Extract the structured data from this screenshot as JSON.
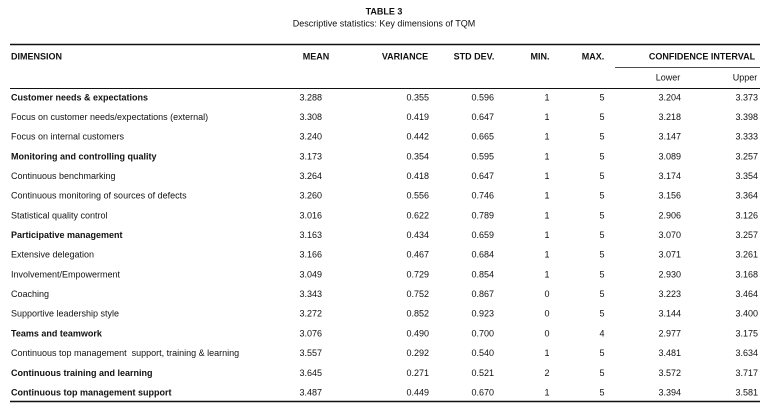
{
  "title": "TABLE 3",
  "subtitle": "Descriptive statistics: Key dimensions of TQM",
  "table": {
    "header": [
      "DIMENSION",
      "MEAN",
      "VARIANCE",
      "STD DEV.",
      "MIN.",
      "MAX.",
      "CONFIDENCE INTERVAL"
    ],
    "subheader": [
      "Lower",
      "Upper"
    ],
    "rows": [
      {
        "bold": true,
        "cells": [
          "Customer needs & expectations",
          "3.288",
          "0.355",
          "0.596",
          "1",
          "5",
          "3.204",
          "3.373"
        ]
      },
      {
        "bold": false,
        "cells": [
          "Focus on customer needs/expectations (external)",
          "3.308",
          "0.419",
          "0.647",
          "1",
          "5",
          "3.218",
          "3.398"
        ]
      },
      {
        "bold": false,
        "cells": [
          "Focus on internal customers",
          "3.240",
          "0.442",
          "0.665",
          "1",
          "5",
          "3.147",
          "3.333"
        ]
      },
      {
        "bold": true,
        "cells": [
          "Monitoring and controlling quality",
          "3.173",
          "0.354",
          "0.595",
          "1",
          "5",
          "3.089",
          "3.257"
        ]
      },
      {
        "bold": false,
        "cells": [
          "Continuous benchmarking",
          "3.264",
          "0.418",
          "0.647",
          "1",
          "5",
          "3.174",
          "3.354"
        ]
      },
      {
        "bold": false,
        "cells": [
          "Continuous monitoring of sources of defects",
          "3.260",
          "0.556",
          "0.746",
          "1",
          "5",
          "3.156",
          "3.364"
        ]
      },
      {
        "bold": false,
        "cells": [
          "Statistical quality control",
          "3.016",
          "0.622",
          "0.789",
          "1",
          "5",
          "2.906",
          "3.126"
        ]
      },
      {
        "bold": true,
        "cells": [
          "Participative management",
          "3.163",
          "0.434",
          "0.659",
          "1",
          "5",
          "3.070",
          "3.257"
        ]
      },
      {
        "bold": false,
        "cells": [
          "Extensive delegation",
          "3.166",
          "0.467",
          "0.684",
          "1",
          "5",
          "3.071",
          "3.261"
        ]
      },
      {
        "bold": false,
        "cells": [
          "Involvement/Empowerment",
          "3.049",
          "0.729",
          "0.854",
          "1",
          "5",
          "2.930",
          "3.168"
        ]
      },
      {
        "bold": false,
        "cells": [
          "Coaching",
          "3.343",
          "0.752",
          "0.867",
          "0",
          "5",
          "3.223",
          "3.464"
        ]
      },
      {
        "bold": false,
        "cells": [
          "Supportive leadership style",
          "3.272",
          "0.852",
          "0.923",
          "0",
          "5",
          "3.144",
          "3.400"
        ]
      },
      {
        "bold": true,
        "cells": [
          "Teams and teamwork",
          "3.076",
          "0.490",
          "0.700",
          "0",
          "4",
          "2.977",
          "3.175"
        ]
      },
      {
        "bold": false,
        "cells": [
          "Continuous top management  support, training & learning",
          "3.557",
          "0.292",
          "0.540",
          "1",
          "5",
          "3.481",
          "3.634"
        ]
      },
      {
        "bold": true,
        "cells": [
          "Continuous training and learning",
          "3.645",
          "0.271",
          "0.521",
          "2",
          "5",
          "3.572",
          "3.717"
        ]
      },
      {
        "bold": true,
        "cells": [
          "Continuous top management support",
          "3.487",
          "0.449",
          "0.670",
          "1",
          "5",
          "3.394",
          "3.581"
        ]
      }
    ]
  }
}
